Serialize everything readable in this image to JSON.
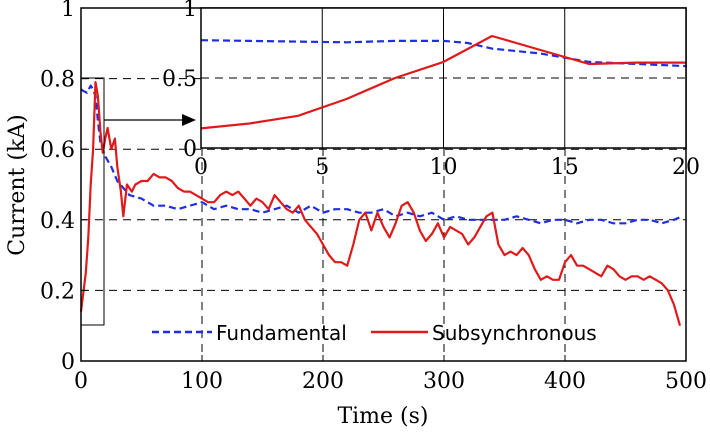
{
  "chart_data": [
    {
      "type": "line",
      "xlabel": "Time (s)",
      "ylabel": "Current (kA)",
      "xlim": [
        0,
        500
      ],
      "ylim": [
        0,
        1
      ],
      "xticks": [
        "0",
        "100",
        "200",
        "300",
        "400",
        "500"
      ],
      "yticks": [
        "0",
        "0.2",
        "0.4",
        "0.6",
        "0.8",
        "1"
      ],
      "grid": true,
      "legend_position": "bottom",
      "series": [
        {
          "name": "Fundamental",
          "color": "#1f2ee0",
          "style": "dashed",
          "x": [
            0,
            2,
            5,
            8,
            10,
            12,
            14,
            16,
            18,
            20,
            25,
            30,
            40,
            50,
            60,
            70,
            80,
            90,
            100,
            110,
            120,
            130,
            140,
            150,
            160,
            170,
            180,
            190,
            200,
            210,
            220,
            230,
            240,
            250,
            260,
            270,
            280,
            290,
            300,
            310,
            320,
            330,
            340,
            350,
            360,
            370,
            380,
            390,
            400,
            410,
            420,
            430,
            440,
            450,
            460,
            470,
            480,
            490,
            497
          ],
          "y": [
            0.77,
            0.765,
            0.76,
            0.78,
            0.77,
            0.75,
            0.68,
            0.62,
            0.6,
            0.58,
            0.55,
            0.51,
            0.47,
            0.46,
            0.44,
            0.44,
            0.43,
            0.44,
            0.45,
            0.43,
            0.44,
            0.43,
            0.43,
            0.42,
            0.43,
            0.44,
            0.42,
            0.44,
            0.42,
            0.43,
            0.43,
            0.42,
            0.42,
            0.43,
            0.41,
            0.42,
            0.41,
            0.42,
            0.4,
            0.41,
            0.4,
            0.4,
            0.4,
            0.4,
            0.41,
            0.4,
            0.39,
            0.4,
            0.4,
            0.39,
            0.4,
            0.4,
            0.39,
            0.39,
            0.4,
            0.4,
            0.39,
            0.4,
            0.41
          ]
        },
        {
          "name": "Subsynchronous",
          "color": "#e01a1a",
          "style": "solid",
          "x": [
            0,
            4,
            6,
            8,
            10,
            12,
            14,
            16,
            18,
            20,
            22,
            25,
            28,
            30,
            33,
            35,
            38,
            42,
            45,
            50,
            55,
            60,
            65,
            70,
            75,
            80,
            85,
            90,
            95,
            100,
            105,
            110,
            115,
            120,
            125,
            130,
            135,
            140,
            145,
            150,
            155,
            160,
            165,
            170,
            175,
            180,
            185,
            190,
            195,
            200,
            205,
            210,
            215,
            220,
            225,
            230,
            235,
            240,
            245,
            250,
            255,
            260,
            265,
            270,
            275,
            280,
            285,
            290,
            295,
            300,
            305,
            310,
            315,
            320,
            325,
            330,
            335,
            340,
            345,
            350,
            355,
            360,
            365,
            370,
            375,
            380,
            385,
            390,
            395,
            400,
            405,
            410,
            415,
            420,
            425,
            430,
            435,
            440,
            445,
            450,
            455,
            460,
            465,
            470,
            475,
            480,
            485,
            490,
            495
          ],
          "y": [
            0.14,
            0.25,
            0.35,
            0.5,
            0.6,
            0.79,
            0.75,
            0.65,
            0.59,
            0.63,
            0.66,
            0.6,
            0.63,
            0.55,
            0.48,
            0.41,
            0.5,
            0.48,
            0.5,
            0.51,
            0.51,
            0.53,
            0.52,
            0.52,
            0.51,
            0.49,
            0.48,
            0.48,
            0.47,
            0.46,
            0.45,
            0.45,
            0.47,
            0.48,
            0.47,
            0.48,
            0.46,
            0.44,
            0.46,
            0.45,
            0.43,
            0.47,
            0.45,
            0.43,
            0.42,
            0.44,
            0.4,
            0.38,
            0.36,
            0.33,
            0.3,
            0.28,
            0.28,
            0.27,
            0.33,
            0.4,
            0.42,
            0.37,
            0.42,
            0.38,
            0.35,
            0.39,
            0.44,
            0.45,
            0.42,
            0.37,
            0.34,
            0.36,
            0.39,
            0.35,
            0.38,
            0.37,
            0.36,
            0.33,
            0.35,
            0.38,
            0.41,
            0.42,
            0.33,
            0.3,
            0.31,
            0.3,
            0.32,
            0.3,
            0.26,
            0.23,
            0.24,
            0.23,
            0.23,
            0.28,
            0.3,
            0.27,
            0.27,
            0.26,
            0.25,
            0.24,
            0.27,
            0.26,
            0.24,
            0.23,
            0.24,
            0.24,
            0.23,
            0.24,
            0.23,
            0.22,
            0.2,
            0.16,
            0.1
          ]
        }
      ]
    },
    {
      "type": "line",
      "inset": true,
      "xlim": [
        0,
        20
      ],
      "ylim": [
        0,
        1
      ],
      "xticks": [
        "0",
        "5",
        "10",
        "15",
        "20"
      ],
      "yticks": [
        "0",
        "0.5",
        "1"
      ],
      "grid": true,
      "series": [
        {
          "name": "Fundamental",
          "color": "#1f2ee0",
          "style": "dashed",
          "x": [
            0,
            2,
            4,
            6,
            8,
            10,
            11,
            12,
            14,
            16,
            18,
            20
          ],
          "y": [
            0.77,
            0.765,
            0.76,
            0.755,
            0.765,
            0.765,
            0.75,
            0.71,
            0.675,
            0.615,
            0.6,
            0.585
          ]
        },
        {
          "name": "Subsynchronous",
          "color": "#e01a1a",
          "style": "solid",
          "x": [
            0,
            2,
            4,
            6,
            8,
            10,
            12,
            14,
            16,
            18,
            20
          ],
          "y": [
            0.14,
            0.175,
            0.23,
            0.35,
            0.5,
            0.615,
            0.8,
            0.7,
            0.6,
            0.61,
            0.61
          ]
        }
      ]
    }
  ]
}
